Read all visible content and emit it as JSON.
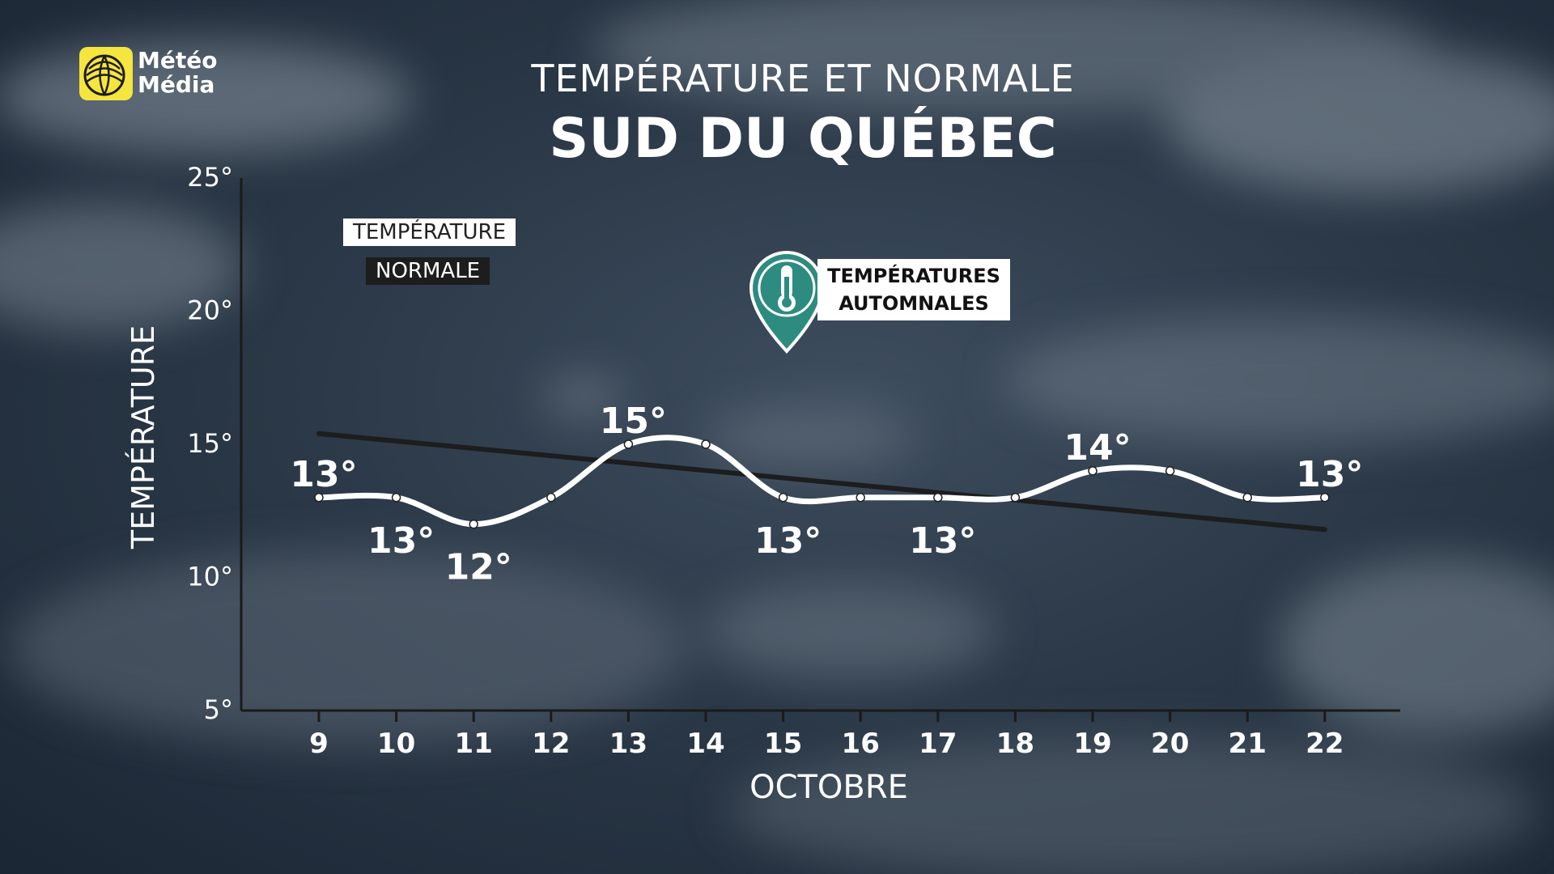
{
  "brand": {
    "name_line1": "Météo",
    "name_line2": "Média"
  },
  "header": {
    "title": "TEMPÉRATURE ET NORMALE",
    "subtitle": "SUD DU QUÉBEC"
  },
  "legend": {
    "temperature": "TEMPÉRATURE",
    "normale": "NORMALE"
  },
  "badge": {
    "line1": "TEMPÉRATURES",
    "line2": "AUTOMNALES",
    "icon": "thermometer-icon"
  },
  "colors": {
    "temperature": "#ffffff",
    "normale": "#1d1d1d",
    "badge": "#2e8b80",
    "logo": "#f5e53f"
  },
  "chart_data": {
    "type": "line",
    "xlabel": "OCTOBRE",
    "ylabel": "TEMPÉRATURE",
    "ylim": [
      5,
      25
    ],
    "yticks": [
      5,
      10,
      15,
      20,
      25
    ],
    "ytick_labels": [
      "5°",
      "10°",
      "15°",
      "20°",
      "25°"
    ],
    "categories": [
      "9",
      "10",
      "11",
      "12",
      "13",
      "14",
      "15",
      "16",
      "17",
      "18",
      "19",
      "20",
      "21",
      "22"
    ],
    "series": [
      {
        "name": "TEMPÉRATURE",
        "values": [
          13,
          13,
          12,
          13,
          15,
          15,
          13,
          13,
          13,
          13,
          14,
          14,
          13,
          13
        ]
      },
      {
        "name": "NORMALE",
        "values": [
          15.4,
          null,
          null,
          null,
          null,
          null,
          null,
          null,
          null,
          null,
          null,
          null,
          null,
          11.8
        ]
      }
    ],
    "data_labels": [
      {
        "index": 0,
        "text": "13°"
      },
      {
        "index": 1,
        "text": "13°"
      },
      {
        "index": 2,
        "text": "12°"
      },
      {
        "index": 4,
        "text": "15°"
      },
      {
        "index": 6,
        "text": "13°"
      },
      {
        "index": 8,
        "text": "13°"
      },
      {
        "index": 10,
        "text": "14°"
      },
      {
        "index": 13,
        "text": "13°"
      }
    ],
    "grid": false
  }
}
